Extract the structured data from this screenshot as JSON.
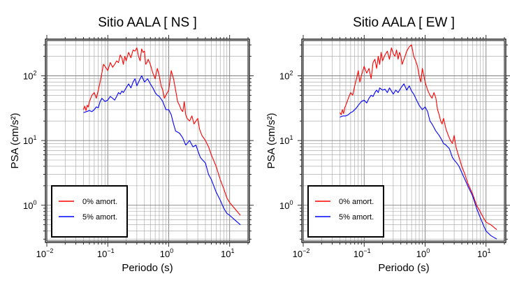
{
  "chart_data": [
    {
      "type": "line",
      "title": "Sitio AALA [ NS ]",
      "xlabel": "Periodo (s)",
      "ylabel": "PSA (cm/s²)",
      "x_scale": "log",
      "y_scale": "log",
      "xlim": [
        0.01,
        20
      ],
      "ylim": [
        0.28,
        350
      ],
      "grid": true,
      "legend_position": "bottom-left",
      "x_ticks": [
        {
          "base": "10",
          "exp": "−2",
          "value": 0.01
        },
        {
          "base": "10",
          "exp": "−1",
          "value": 0.1
        },
        {
          "base": "10",
          "exp": "0",
          "value": 1
        },
        {
          "base": "10",
          "exp": "1",
          "value": 10
        }
      ],
      "y_ticks": [
        {
          "base": "10",
          "exp": "0",
          "value": 1
        },
        {
          "base": "10",
          "exp": "1",
          "value": 10
        },
        {
          "base": "10",
          "exp": "2",
          "value": 100
        }
      ],
      "series": [
        {
          "name": "0% amort.",
          "color": "#ff0000",
          "x": [
            0.04,
            0.042,
            0.044,
            0.046,
            0.048,
            0.05,
            0.055,
            0.06,
            0.065,
            0.07,
            0.075,
            0.08,
            0.085,
            0.09,
            0.1,
            0.11,
            0.12,
            0.13,
            0.14,
            0.15,
            0.16,
            0.17,
            0.18,
            0.19,
            0.2,
            0.22,
            0.24,
            0.26,
            0.28,
            0.3,
            0.32,
            0.34,
            0.36,
            0.38,
            0.4,
            0.42,
            0.44,
            0.46,
            0.5,
            0.55,
            0.6,
            0.65,
            0.7,
            0.75,
            0.8,
            0.85,
            0.9,
            1.0,
            1.1,
            1.2,
            1.3,
            1.4,
            1.5,
            1.6,
            1.7,
            1.8,
            1.9,
            2.0,
            2.2,
            2.4,
            2.6,
            2.8,
            3.0,
            3.2,
            3.5,
            4.0,
            4.5,
            5.0,
            6.0,
            7.0,
            8.0,
            9.0,
            10.0,
            12.0,
            15.0
          ],
          "y": [
            30,
            34,
            29,
            35,
            33,
            40,
            50,
            55,
            45,
            60,
            80,
            110,
            150,
            140,
            120,
            160,
            135,
            150,
            170,
            160,
            210,
            190,
            150,
            200,
            170,
            230,
            190,
            250,
            240,
            270,
            200,
            170,
            260,
            230,
            240,
            150,
            160,
            180,
            150,
            110,
            90,
            130,
            100,
            70,
            60,
            45,
            50,
            60,
            120,
            90,
            60,
            40,
            35,
            30,
            28,
            40,
            25,
            22,
            20,
            24,
            18,
            20,
            22,
            15,
            12,
            10,
            8,
            6,
            4,
            2.5,
            1.8,
            1.3,
            1.1,
            0.9,
            0.7
          ]
        },
        {
          "name": "5% amort.",
          "color": "#0000ff",
          "x": [
            0.04,
            0.045,
            0.05,
            0.055,
            0.06,
            0.065,
            0.07,
            0.075,
            0.08,
            0.09,
            0.1,
            0.11,
            0.12,
            0.13,
            0.14,
            0.15,
            0.16,
            0.17,
            0.18,
            0.2,
            0.22,
            0.24,
            0.26,
            0.28,
            0.3,
            0.33,
            0.36,
            0.4,
            0.45,
            0.5,
            0.55,
            0.6,
            0.65,
            0.7,
            0.8,
            0.9,
            1.0,
            1.1,
            1.2,
            1.3,
            1.5,
            1.7,
            1.9,
            2.0,
            2.2,
            2.5,
            2.8,
            3.0,
            3.3,
            3.6,
            4.0,
            4.5,
            5.0,
            6.0,
            7.0,
            8.0,
            9.0,
            10.0,
            12.0,
            15.0
          ],
          "y": [
            27,
            28,
            29,
            28,
            30,
            33,
            32,
            40,
            45,
            40,
            42,
            48,
            45,
            42,
            48,
            55,
            52,
            58,
            55,
            65,
            75,
            65,
            80,
            90,
            70,
            85,
            100,
            80,
            90,
            75,
            65,
            55,
            50,
            48,
            40,
            30,
            30,
            25,
            18,
            14,
            13,
            11,
            8.5,
            9,
            10,
            8,
            8.5,
            7,
            5.5,
            5,
            4.5,
            3,
            2.5,
            1.6,
            1.2,
            0.9,
            0.75,
            0.7,
            0.6,
            0.5
          ]
        }
      ]
    },
    {
      "type": "line",
      "title": "Sitio AALA [ EW ]",
      "xlabel": "Periodo (s)",
      "ylabel": "PSA (cm/s²)",
      "x_scale": "log",
      "y_scale": "log",
      "xlim": [
        0.01,
        20
      ],
      "ylim": [
        0.28,
        350
      ],
      "grid": true,
      "legend_position": "bottom-left",
      "x_ticks": [
        {
          "base": "10",
          "exp": "−2",
          "value": 0.01
        },
        {
          "base": "10",
          "exp": "−1",
          "value": 0.1
        },
        {
          "base": "10",
          "exp": "0",
          "value": 1
        },
        {
          "base": "10",
          "exp": "1",
          "value": 10
        }
      ],
      "y_ticks": [
        {
          "base": "10",
          "exp": "0",
          "value": 1
        },
        {
          "base": "10",
          "exp": "1",
          "value": 10
        },
        {
          "base": "10",
          "exp": "2",
          "value": 100
        }
      ],
      "series": [
        {
          "name": "0% amort.",
          "color": "#ff0000",
          "x": [
            0.04,
            0.042,
            0.044,
            0.046,
            0.048,
            0.05,
            0.055,
            0.06,
            0.065,
            0.07,
            0.075,
            0.08,
            0.085,
            0.09,
            0.1,
            0.11,
            0.12,
            0.13,
            0.14,
            0.15,
            0.16,
            0.17,
            0.18,
            0.19,
            0.2,
            0.22,
            0.24,
            0.26,
            0.28,
            0.3,
            0.32,
            0.34,
            0.36,
            0.38,
            0.4,
            0.42,
            0.44,
            0.46,
            0.5,
            0.55,
            0.6,
            0.65,
            0.7,
            0.75,
            0.8,
            0.85,
            0.9,
            1.0,
            1.1,
            1.2,
            1.3,
            1.4,
            1.5,
            1.6,
            1.7,
            1.8,
            1.9,
            2.0,
            2.2,
            2.4,
            2.6,
            2.8,
            3.0,
            3.2,
            3.5,
            4.0,
            4.5,
            5.0,
            6.0,
            7.0,
            8.0,
            9.0,
            10.0,
            12.0,
            15.0
          ],
          "y": [
            27,
            25,
            30,
            26,
            32,
            35,
            45,
            55,
            50,
            70,
            90,
            120,
            80,
            100,
            140,
            110,
            130,
            90,
            160,
            180,
            130,
            200,
            150,
            230,
            170,
            210,
            240,
            180,
            270,
            220,
            200,
            250,
            180,
            230,
            200,
            150,
            170,
            190,
            240,
            280,
            300,
            200,
            170,
            140,
            100,
            80,
            130,
            80,
            60,
            50,
            45,
            55,
            45,
            30,
            25,
            20,
            18,
            22,
            15,
            12,
            10,
            9,
            12,
            8,
            6,
            4,
            3,
            2.2,
            1.5,
            1.0,
            0.8,
            0.65,
            0.55,
            0.5,
            0.42
          ]
        },
        {
          "name": "5% amort.",
          "color": "#0000ff",
          "x": [
            0.04,
            0.045,
            0.05,
            0.055,
            0.06,
            0.065,
            0.07,
            0.075,
            0.08,
            0.09,
            0.1,
            0.11,
            0.12,
            0.13,
            0.14,
            0.15,
            0.16,
            0.17,
            0.18,
            0.2,
            0.22,
            0.24,
            0.26,
            0.28,
            0.3,
            0.33,
            0.36,
            0.4,
            0.45,
            0.5,
            0.55,
            0.6,
            0.65,
            0.7,
            0.8,
            0.9,
            1.0,
            1.1,
            1.2,
            1.3,
            1.5,
            1.7,
            1.9,
            2.0,
            2.2,
            2.5,
            2.8,
            3.0,
            3.3,
            3.6,
            4.0,
            4.5,
            5.0,
            6.0,
            7.0,
            8.0,
            9.0,
            10.0,
            12.0,
            15.0
          ],
          "y": [
            23,
            24,
            24,
            25,
            27,
            28,
            30,
            32,
            35,
            40,
            42,
            38,
            45,
            50,
            48,
            55,
            60,
            55,
            65,
            60,
            62,
            55,
            65,
            58,
            52,
            60,
            55,
            65,
            75,
            60,
            70,
            58,
            52,
            45,
            35,
            30,
            33,
            28,
            20,
            18,
            14,
            12,
            10,
            9,
            8.5,
            7.5,
            5.5,
            5,
            4.5,
            4,
            3.2,
            2.5,
            2,
            1.4,
            0.9,
            0.65,
            0.5,
            0.4,
            0.34,
            0.3
          ]
        }
      ]
    }
  ]
}
